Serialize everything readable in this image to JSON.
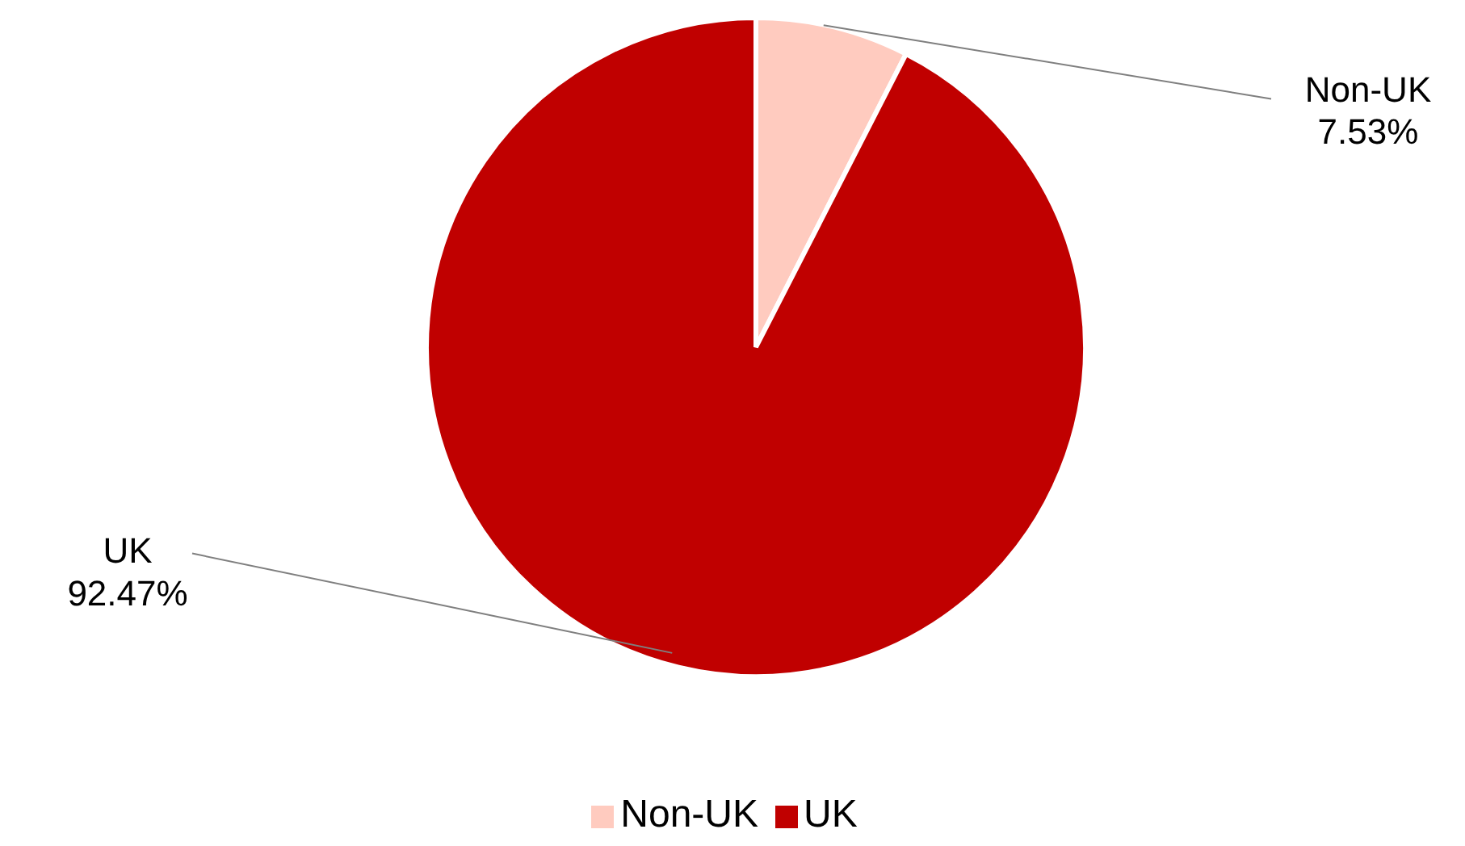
{
  "chart_data": {
    "type": "pie",
    "categories": [
      "Non-UK",
      "UK"
    ],
    "values": [
      7.53,
      92.47
    ],
    "colors": [
      "#ffcbbf",
      "#c00000"
    ],
    "value_labels": [
      "7.53%",
      "92.47%"
    ],
    "legend": "bottom"
  }
}
